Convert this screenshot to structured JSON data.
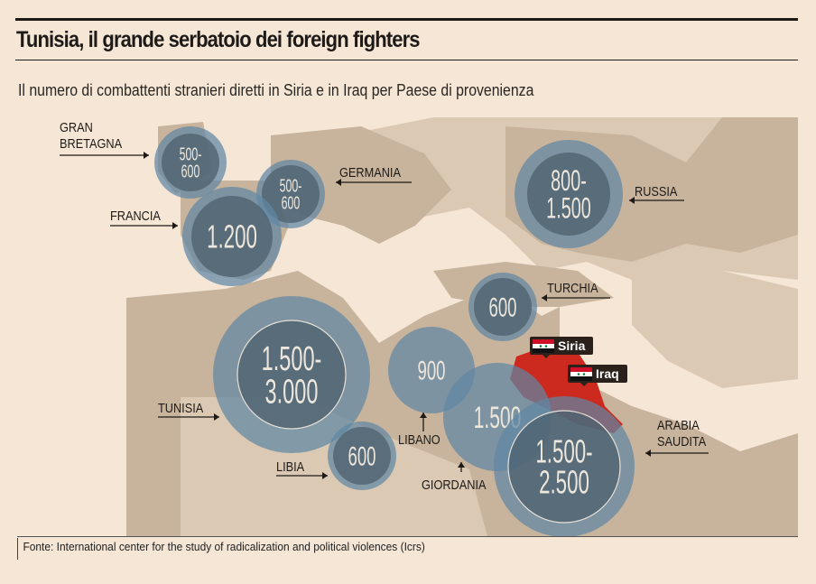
{
  "title": "Tunisia, il grande serbatoio dei foreign fighters",
  "subtitle": "Il numero di combattenti stranieri diretti in Siria e in Iraq per Paese di provenienza",
  "source": "Fonte: International center for the study of radicalization and political violences (Icrs)",
  "colors": {
    "sea": "#f5e6d6",
    "land": "#c8b49c",
    "land_light": "#dcc9b4",
    "bubble": "#5f86a3",
    "bubble_inner": "#4c5f6c",
    "highlight": "#cc2a1e"
  },
  "countries": [
    {
      "id": "gran-bretagna",
      "label_lines": [
        "GRAN",
        "BRETAGNA"
      ],
      "value": "500-\n600",
      "value_lines": [
        "500-",
        "600"
      ]
    },
    {
      "id": "germania",
      "label_lines": [
        "GERMANIA"
      ],
      "value_lines": [
        "500-",
        "600"
      ]
    },
    {
      "id": "francia",
      "label_lines": [
        "FRANCIA"
      ],
      "value_lines": [
        "1.200"
      ]
    },
    {
      "id": "russia",
      "label_lines": [
        "RUSSIA"
      ],
      "value_lines": [
        "800-",
        "1.500"
      ]
    },
    {
      "id": "turchia",
      "label_lines": [
        "TURCHIA"
      ],
      "value_lines": [
        "600"
      ]
    },
    {
      "id": "tunisia",
      "label_lines": [
        "TUNISIA"
      ],
      "value_lines": [
        "1.500-",
        "3.000"
      ]
    },
    {
      "id": "libia",
      "label_lines": [
        "LIBIA"
      ],
      "value_lines": [
        "600"
      ]
    },
    {
      "id": "libano",
      "label_lines": [
        "LIBANO"
      ],
      "value_lines": [
        "900"
      ]
    },
    {
      "id": "giordania",
      "label_lines": [
        "GIORDANIA"
      ],
      "value_lines": [
        "1.500"
      ]
    },
    {
      "id": "arabia-saudita",
      "label_lines": [
        "ARABIA",
        "SAUDITA"
      ],
      "value_lines": [
        "1.500-",
        "2.500"
      ]
    }
  ],
  "targets": [
    {
      "label": "Siria",
      "icon": "syria-flag-icon"
    },
    {
      "label": "Iraq",
      "icon": "iraq-flag-icon"
    }
  ]
}
